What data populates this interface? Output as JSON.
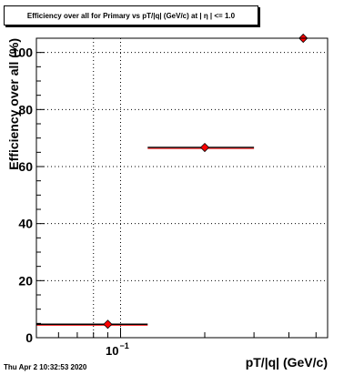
{
  "chart_data": {
    "type": "scatter",
    "title": "Efficiency over all for Primary vs pT/|q| (GeV/c) at | η | <= 1.0",
    "xlabel": "pT/|q| (GeV/c)",
    "ylabel": "Efficiency over all (%)",
    "x_scale": "log",
    "x_tick_labels": [
      "10",
      "−1"
    ],
    "ylim": [
      0,
      105
    ],
    "y_ticks": [
      0,
      20,
      40,
      60,
      80,
      100
    ],
    "grid": true,
    "series": [
      {
        "marker_color": "#ff0000",
        "points": [
          {
            "x": 0.09,
            "y": 4.7,
            "xlow": 0.05,
            "xhigh": 0.125
          },
          {
            "x": 0.2,
            "y": 66.7,
            "xlow": 0.125,
            "xhigh": 0.3
          },
          {
            "x": 0.45,
            "y": 105
          }
        ]
      }
    ]
  },
  "footer": {
    "timestamp": "Thu Apr  2 10:32:53 2020"
  }
}
